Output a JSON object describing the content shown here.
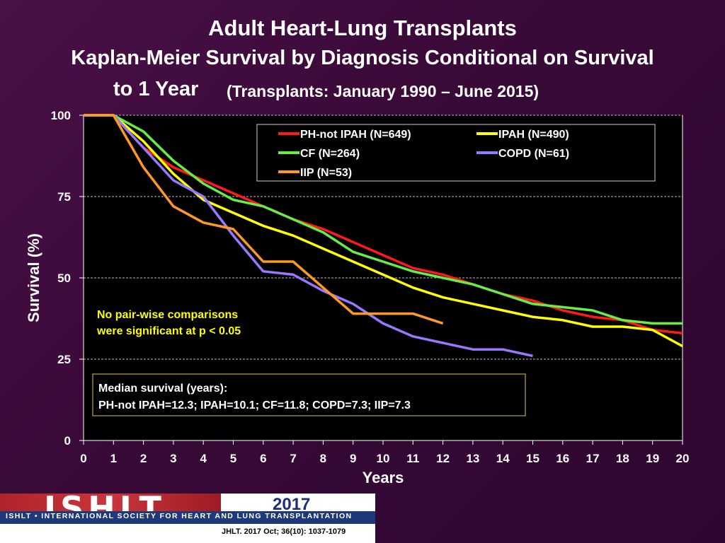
{
  "title": {
    "line1": "Adult Heart-Lung Transplants",
    "line2": "Kaplan-Meier Survival by Diagnosis Conditional on Survival",
    "line3": "to 1 Year",
    "subtitle": "(Transplants: January 1990 – June 2015)"
  },
  "footer": {
    "logo": "ISHLT",
    "org": "ISHLT • INTERNATIONAL SOCIETY FOR HEART AND LUNG TRANSPLANTATION",
    "year": "2017",
    "citation": "JHLT. 2017 Oct; 36(10): 1037-1079"
  },
  "chart_data": {
    "type": "line",
    "title": "Kaplan-Meier Survival by Diagnosis Conditional on Survival to 1 Year",
    "xlabel": "Years",
    "ylabel": "Survival (%)",
    "xlim": [
      0,
      20
    ],
    "ylim": [
      0,
      100
    ],
    "xticks": [
      0,
      1,
      2,
      3,
      4,
      5,
      6,
      7,
      8,
      9,
      10,
      11,
      12,
      13,
      14,
      15,
      16,
      17,
      18,
      19,
      20
    ],
    "yticks": [
      0,
      25,
      50,
      75,
      100
    ],
    "grid": "horizontal dashed",
    "legend": [
      {
        "name": "PH-not IPAH (N=649)",
        "color": "#ff1a1a"
      },
      {
        "name": "IPAH (N=490)",
        "color": "#ffff00"
      },
      {
        "name": "CF (N=264)",
        "color": "#66ee44"
      },
      {
        "name": "COPD (N=61)",
        "color": "#9977ff"
      },
      {
        "name": "IIP (N=53)",
        "color": "#ff9922"
      }
    ],
    "series": [
      {
        "name": "PH-not IPAH (N=649)",
        "color": "#ff1a1a",
        "x": [
          0,
          1,
          2,
          3,
          4,
          5,
          6,
          7,
          8,
          9,
          10,
          11,
          12,
          13,
          14,
          15,
          16,
          17,
          18,
          19,
          20
        ],
        "y": [
          100,
          100,
          90,
          84,
          80,
          76,
          72,
          68,
          65,
          61,
          57,
          53,
          51,
          48,
          45,
          43,
          40,
          38,
          37,
          34,
          33
        ]
      },
      {
        "name": "IPAH (N=490)",
        "color": "#ffff00",
        "x": [
          0,
          1,
          2,
          3,
          4,
          5,
          6,
          7,
          8,
          9,
          10,
          11,
          12,
          13,
          14,
          15,
          16,
          17,
          18,
          19,
          20
        ],
        "y": [
          100,
          100,
          92,
          82,
          74,
          70,
          66,
          63,
          59,
          55,
          51,
          47,
          44,
          42,
          40,
          38,
          37,
          35,
          35,
          34,
          29
        ]
      },
      {
        "name": "CF (N=264)",
        "color": "#66ee44",
        "x": [
          0,
          1,
          2,
          3,
          4,
          5,
          6,
          7,
          8,
          9,
          10,
          11,
          12,
          13,
          14,
          15,
          16,
          17,
          18,
          19,
          20
        ],
        "y": [
          100,
          100,
          95,
          86,
          79,
          74,
          72,
          68,
          64,
          58,
          55,
          52,
          50,
          48,
          45,
          42,
          41,
          40,
          37,
          36,
          36
        ]
      },
      {
        "name": "COPD (N=61)",
        "color": "#9977ff",
        "x": [
          0,
          1,
          2,
          3,
          4,
          5,
          6,
          7,
          8,
          9,
          10,
          11,
          12,
          13,
          14,
          15
        ],
        "y": [
          100,
          100,
          90,
          80,
          75,
          63,
          52,
          51,
          46,
          42,
          36,
          32,
          30,
          28,
          28,
          26
        ]
      },
      {
        "name": "IIP (N=53)",
        "color": "#ff9922",
        "x": [
          0,
          1,
          2,
          3,
          4,
          5,
          6,
          7,
          8,
          9,
          10,
          11,
          12
        ],
        "y": [
          100,
          100,
          84,
          72,
          67,
          65,
          55,
          55,
          47,
          39,
          39,
          39,
          36
        ]
      }
    ],
    "annotations": {
      "significance": [
        "No pair-wise comparisons",
        "were significant at p < 0.05"
      ],
      "median_title": "Median survival (years):",
      "median_values": "PH-not IPAH=12.3; IPAH=10.1; CF=11.8; COPD=7.3; IIP=7.3"
    }
  }
}
